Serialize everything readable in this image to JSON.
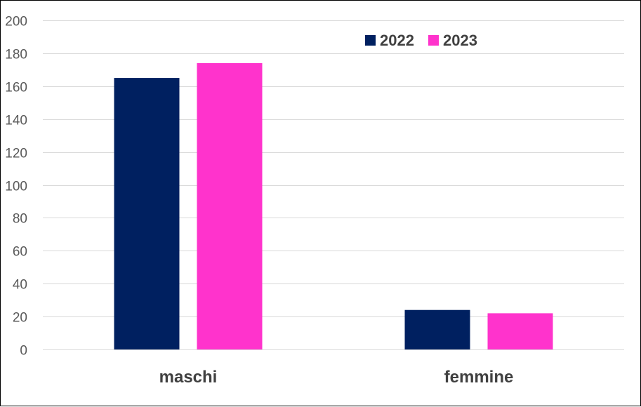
{
  "chart_data": {
    "type": "bar",
    "categories": [
      "maschi",
      "femmine"
    ],
    "series": [
      {
        "name": "2022",
        "values": [
          165,
          24
        ],
        "color": "#002060"
      },
      {
        "name": "2023",
        "values": [
          174,
          22
        ],
        "color": "#FF33CC"
      }
    ],
    "ylim": [
      0,
      200
    ],
    "yticks": [
      0,
      20,
      40,
      60,
      80,
      100,
      120,
      140,
      160,
      180,
      200
    ],
    "grid": true,
    "legend_position": "top-right",
    "gridline_color": "#D9D9D9"
  }
}
